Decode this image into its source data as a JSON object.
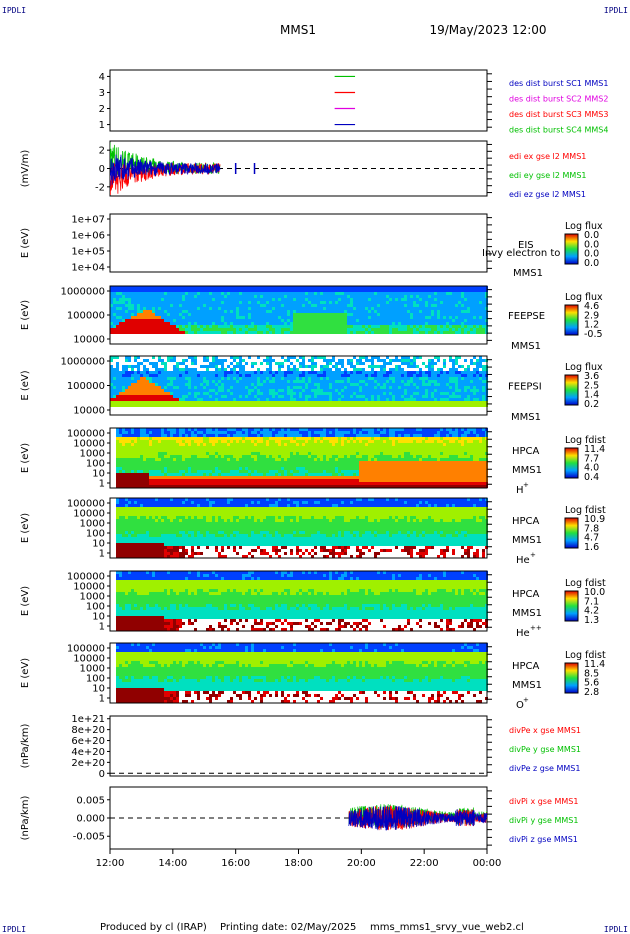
{
  "corner_marks": {
    "top_left": "IPDLI",
    "top_right": "IPDLI",
    "bottom_left": "IPDLI",
    "bottom_right": "IPDLI"
  },
  "header": {
    "title": "MMS1",
    "datetime": "19/May/2023 12:00"
  },
  "footer": {
    "produced_by": "Produced by cl (IRAP)",
    "printing_date": "Printing date: 02/May/2025",
    "script": "mms_mms1_srvy_vue_web2.cl"
  },
  "time_axis": {
    "ticks": [
      "12:00",
      "14:00",
      "16:00",
      "18:00",
      "20:00",
      "22:00",
      "00:00"
    ],
    "start_hour": 12,
    "end_hour": 24
  },
  "colors": {
    "black": "#000000",
    "red": "#ff0000",
    "green": "#00c000",
    "blue": "#0000c0",
    "magenta": "#e000e0",
    "navy": "#000080"
  },
  "chart_data": [
    {
      "type": "line",
      "id": "des_dist",
      "ytick_labels": [
        "4",
        "3",
        "2",
        "1"
      ],
      "ytick_values": [
        4,
        3,
        2,
        1
      ],
      "ylim": [
        0.6,
        4.4
      ],
      "legend": [
        {
          "label": "des dist burst SC1 MMS1",
          "color": "#0000c0"
        },
        {
          "label": "des dist burst SC2 MMS2",
          "color": "#e000e0"
        },
        {
          "label": "des dist burst SC3 MMS3",
          "color": "#ff0000"
        },
        {
          "label": "des dist burst SC4 MMS4",
          "color": "#00c000"
        }
      ],
      "series": [
        {
          "color": "#00c000",
          "value": 4,
          "x_start": 19.15,
          "x_end": 19.8
        },
        {
          "color": "#ff0000",
          "value": 3,
          "x_start": 19.15,
          "x_end": 19.8
        },
        {
          "color": "#e000e0",
          "value": 2,
          "x_start": 19.15,
          "x_end": 19.8
        },
        {
          "color": "#0000c0",
          "value": 1,
          "x_start": 19.15,
          "x_end": 19.8
        }
      ]
    },
    {
      "type": "line",
      "id": "edi",
      "ylabel": "(mV/m)",
      "ytick_labels": [
        "2",
        "0",
        "-2"
      ],
      "ytick_values": [
        2,
        0,
        -2
      ],
      "ylim": [
        -3,
        3
      ],
      "legend": [
        {
          "label": "edi ex gse l2 MMS1",
          "color": "#ff0000"
        },
        {
          "label": "edi ey gse l2 MMS1",
          "color": "#00c000"
        },
        {
          "label": "edi ez gse l2 MMS1",
          "color": "#0000c0"
        }
      ],
      "zero_line": true,
      "data_x_range": [
        12,
        15.5
      ],
      "extra_points_x": [
        16.0,
        16.6
      ]
    },
    {
      "type": "heatmap",
      "id": "eis",
      "ylabel": "E (eV)",
      "ytick_labels": [
        "1e+07",
        "1e+06",
        "1e+05",
        "1e+04"
      ],
      "ylim_log": [
        4,
        7
      ],
      "instrument": "EIS",
      "spacecraft": "MMS1",
      "extra_label": "Invy electron to",
      "colorbar": {
        "title": "Log flux",
        "ticks": [
          "0.0",
          "0.0",
          "0.0",
          "0.0"
        ]
      },
      "empty": true
    },
    {
      "type": "heatmap",
      "id": "feepse",
      "ylabel": "E (eV)",
      "ytick_labels": [
        "1000000",
        "100000",
        "10000"
      ],
      "ylim_log": [
        4,
        6.1
      ],
      "instrument": "FEEPSE",
      "spacecraft": "MMS1",
      "colorbar": {
        "title": "Log flux",
        "ticks": [
          "4.6",
          "2.9",
          "1.2",
          "-0.5"
        ]
      }
    },
    {
      "type": "heatmap",
      "id": "feepsi",
      "ylabel": "E (eV)",
      "ytick_labels": [
        "1000000",
        "100000",
        "10000"
      ],
      "ylim_log": [
        4,
        6.1
      ],
      "instrument": "FEEPSI",
      "spacecraft": "MMS1",
      "colorbar": {
        "title": "Log flux",
        "ticks": [
          "3.6",
          "2.5",
          "1.4",
          "0.2"
        ]
      }
    },
    {
      "type": "heatmap",
      "id": "hpca_h",
      "ylabel": "E (eV)",
      "ytick_labels": [
        "100000",
        "10000",
        "1000",
        "100",
        "10",
        "1"
      ],
      "ylim_log": [
        0,
        5
      ],
      "instrument": "HPCA",
      "spacecraft": "MMS1",
      "species": "H",
      "charge": "+",
      "colorbar": {
        "title": "Log fdist",
        "ticks": [
          "11.4",
          "7.7",
          "4.0",
          "0.4"
        ]
      }
    },
    {
      "type": "heatmap",
      "id": "hpca_he",
      "ylabel": "E (eV)",
      "ytick_labels": [
        "100000",
        "10000",
        "1000",
        "100",
        "10",
        "1"
      ],
      "ylim_log": [
        0,
        5
      ],
      "instrument": "HPCA",
      "spacecraft": "MMS1",
      "species": "He",
      "charge": "+",
      "colorbar": {
        "title": "Log fdist",
        "ticks": [
          "10.9",
          "7.8",
          "4.7",
          "1.6"
        ]
      }
    },
    {
      "type": "heatmap",
      "id": "hpca_hepp",
      "ylabel": "E (eV)",
      "ytick_labels": [
        "100000",
        "10000",
        "1000",
        "100",
        "10",
        "1"
      ],
      "ylim_log": [
        0,
        5
      ],
      "instrument": "HPCA",
      "spacecraft": "MMS1",
      "species": "He",
      "charge": "++",
      "colorbar": {
        "title": "Log fdist",
        "ticks": [
          "10.0",
          "7.1",
          "4.2",
          "1.3"
        ]
      }
    },
    {
      "type": "heatmap",
      "id": "hpca_o",
      "ylabel": "E (eV)",
      "ytick_labels": [
        "100000",
        "10000",
        "1000",
        "100",
        "10",
        "1"
      ],
      "ylim_log": [
        0,
        5
      ],
      "instrument": "HPCA",
      "spacecraft": "MMS1",
      "species": "O",
      "charge": "+",
      "colorbar": {
        "title": "Log fdist",
        "ticks": [
          "11.4",
          "8.5",
          "5.6",
          "2.8"
        ]
      }
    },
    {
      "type": "line",
      "id": "divpe",
      "ylabel": "(nPa/km)",
      "ytick_labels": [
        "1e+21",
        "8e+20",
        "6e+20",
        "4e+20",
        "2e+20",
        "0"
      ],
      "ytick_values": [
        1e+21,
        8e+20,
        6e+20,
        4e+20,
        2e+20,
        0
      ],
      "ylim": [
        -5e+19,
        1.05e+21
      ],
      "legend": [
        {
          "label": "divPe x gse MMS1",
          "color": "#ff0000"
        },
        {
          "label": "divPe y gse MMS1",
          "color": "#00c000"
        },
        {
          "label": "divPe z gse MMS1",
          "color": "#0000c0"
        }
      ],
      "zero_line": true,
      "empty": true
    },
    {
      "type": "line",
      "id": "divpi",
      "ylabel": "(nPa/km)",
      "ytick_labels": [
        "0.005",
        "0.000",
        "-0.005"
      ],
      "ytick_values": [
        0.005,
        0,
        -0.005
      ],
      "ylim": [
        -0.0085,
        0.0085
      ],
      "legend": [
        {
          "label": "divPi x gse MMS1",
          "color": "#ff0000"
        },
        {
          "label": "divPi y gse MMS1",
          "color": "#00c000"
        },
        {
          "label": "divPi z gse MMS1",
          "color": "#0000c0"
        }
      ],
      "zero_line": true,
      "data_x_range": [
        19.6,
        24
      ]
    }
  ]
}
